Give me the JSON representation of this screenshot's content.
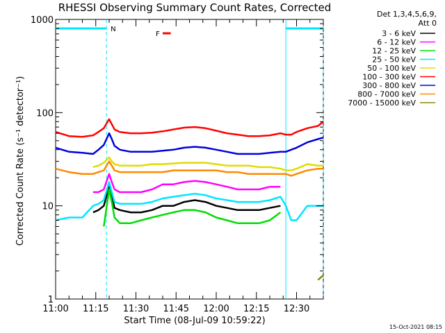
{
  "chart_data": {
    "type": "line",
    "title": "RHESSI Observing Summary Count Rates, Corrected",
    "xlabel": "Start Time (08-Jul-09 10:59:22)",
    "ylabel": "Corrected Count Rate (s⁻¹ detector⁻¹)",
    "yscale": "log",
    "ylim": [
      1,
      1000
    ],
    "xlim_minutes_after_11_00": [
      0,
      100
    ],
    "x_ticks": [
      "11:00",
      "11:15",
      "11:30",
      "11:45",
      "12:00",
      "12:15",
      "12:30"
    ],
    "y_ticks": [
      "1",
      "10",
      "100",
      "1000"
    ],
    "legend_header": [
      "Det 1,3,4,5,6,9,",
      "Att 0"
    ],
    "legend_position": "right",
    "footer_date": "15-Oct-2021 08:15",
    "flag_labels": [
      "N",
      "F"
    ],
    "flags": [
      {
        "label": "N",
        "color": "#00e5ff",
        "ranges": [
          [
            0,
            19
          ],
          [
            86,
            100
          ]
        ]
      },
      {
        "label": "F",
        "color": "#ff0000",
        "ranges": [
          [
            40,
            43
          ]
        ]
      }
    ],
    "dashed_vlines_minutes": [
      19,
      100
    ],
    "solid_vlines_minutes": [
      86
    ],
    "x_minutes": [
      0,
      5,
      10,
      14,
      16,
      18,
      20,
      21,
      22,
      24,
      28,
      32,
      36,
      40,
      44,
      48,
      52,
      56,
      60,
      64,
      68,
      72,
      76,
      80,
      84,
      86,
      88,
      90,
      94,
      98,
      100
    ],
    "series": [
      {
        "name": "3 - 6 keV",
        "color": "#000000",
        "values": [
          null,
          null,
          null,
          8.5,
          9,
          10,
          16,
          13,
          9.5,
          9,
          8.5,
          8.5,
          9,
          10,
          10,
          11,
          11.5,
          11,
          10,
          9.5,
          9,
          9,
          9,
          9.5,
          10,
          null,
          null,
          null,
          null,
          null,
          null
        ]
      },
      {
        "name": "6 - 12 keV",
        "color": "#ff00ff",
        "values": [
          null,
          null,
          null,
          14,
          14,
          15,
          22,
          18,
          15,
          14,
          14,
          14,
          15,
          17,
          17,
          18,
          18.5,
          18,
          17,
          16,
          15,
          15,
          15,
          16,
          16,
          null,
          null,
          null,
          null,
          null,
          null
        ]
      },
      {
        "name": "12 - 25 keV",
        "color": "#00dd00",
        "values": [
          null,
          null,
          null,
          null,
          null,
          6,
          15,
          11,
          7.5,
          6.5,
          6.5,
          7,
          7.5,
          8,
          8.5,
          9,
          9,
          8.5,
          7.5,
          7,
          6.5,
          6.5,
          6.5,
          7,
          8.5,
          null,
          null,
          null,
          null,
          null,
          null
        ]
      },
      {
        "name": "25 - 50 keV",
        "color": "#00e5ff",
        "values": [
          7,
          7.5,
          7.5,
          10,
          10.5,
          11.5,
          18,
          14,
          11,
          10.5,
          10.5,
          10.5,
          11,
          12,
          12.5,
          13,
          13.5,
          13,
          12,
          11.5,
          11,
          11,
          11,
          11.5,
          12.5,
          10,
          7,
          7,
          10,
          10,
          10
        ]
      },
      {
        "name": "50 - 100 keV",
        "color": "#dddd00",
        "values": [
          null,
          null,
          null,
          26,
          27,
          29,
          33,
          30,
          28,
          27,
          27,
          27,
          28,
          28,
          28.5,
          29,
          29,
          29,
          28,
          27,
          27,
          27,
          26,
          26,
          25,
          24,
          24,
          25,
          28,
          27,
          27
        ]
      },
      {
        "name": "100 - 300 keV",
        "color": "#ff0000",
        "values": [
          62,
          56,
          55,
          57,
          62,
          68,
          85,
          75,
          66,
          62,
          60,
          60,
          61,
          63,
          66,
          69,
          70,
          68,
          64,
          60,
          58,
          56,
          56,
          57,
          60,
          58,
          58,
          62,
          68,
          72,
          80
        ]
      },
      {
        "name": "300 - 800 keV",
        "color": "#0000dd",
        "values": [
          42,
          38,
          37,
          36,
          40,
          45,
          60,
          52,
          44,
          40,
          38,
          38,
          38,
          39,
          40,
          42,
          43,
          42,
          40,
          38,
          36,
          36,
          36,
          37,
          38,
          38,
          40,
          42,
          48,
          52,
          54
        ]
      },
      {
        "name": "800 - 7000 keV",
        "color": "#ff8800",
        "values": [
          25,
          23,
          22,
          22,
          23,
          24,
          30,
          27,
          24,
          23,
          23,
          23,
          23,
          23,
          24,
          24,
          24,
          24,
          24,
          23,
          23,
          22,
          22,
          22,
          22,
          22,
          21,
          22,
          24,
          25,
          25
        ]
      },
      {
        "name": "7000 - 15000 keV",
        "color": "#888800",
        "values": [
          null,
          null,
          null,
          null,
          null,
          null,
          null,
          null,
          null,
          null,
          null,
          null,
          null,
          null,
          null,
          null,
          null,
          null,
          null,
          null,
          null,
          null,
          null,
          null,
          null,
          null,
          null,
          null,
          null,
          1.6,
          1.8
        ]
      }
    ]
  }
}
